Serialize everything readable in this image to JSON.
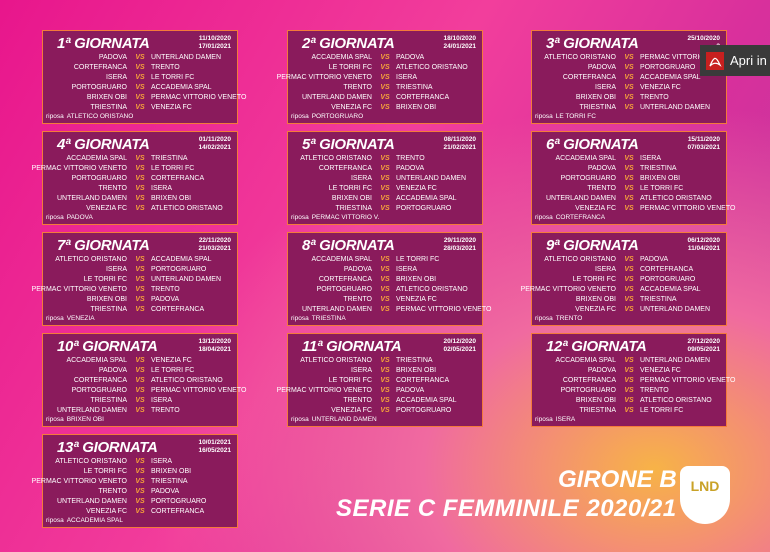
{
  "vs_label": "VS",
  "rest_label": "riposa",
  "button": "Apri in",
  "footer": {
    "line1": "GIRONE B",
    "line2": "SERIE C FEMMINILE 2020/21",
    "logo": "LND"
  },
  "rounds": [
    {
      "title": "1ª GIORNATA",
      "date1": "11/10/2020",
      "date2": "17/01/2021",
      "matches": [
        [
          "PADOVA",
          "UNTERLAND DAMEN"
        ],
        [
          "CORTEFRANCA",
          "TRENTO"
        ],
        [
          "ISERA",
          "LE TORRI FC"
        ],
        [
          "PORTOGRUARO",
          "ACCADEMIA SPAL"
        ],
        [
          "BRIXEN OBI",
          "PERMAC VITTORIO VENETO"
        ],
        [
          "TRIESTINA",
          "VENEZIA FC"
        ]
      ],
      "rest": "ATLETICO ORISTANO"
    },
    {
      "title": "2ª GIORNATA",
      "date1": "18/10/2020",
      "date2": "24/01/2021",
      "matches": [
        [
          "ACCADEMIA SPAL",
          "PADOVA"
        ],
        [
          "LE TORRI FC",
          "ATLETICO ORISTANO"
        ],
        [
          "PERMAC VITTORIO VENETO",
          "ISERA"
        ],
        [
          "TRENTO",
          "TRIESTINA"
        ],
        [
          "UNTERLAND DAMEN",
          "CORTEFRANCA"
        ],
        [
          "VENEZIA FC",
          "BRIXEN OBI"
        ]
      ],
      "rest": "PORTOGRUARO"
    },
    {
      "title": "3ª GIORNATA",
      "date1": "25/10/2020",
      "date2": "3",
      "matches": [
        [
          "ATLETICO ORISTANO",
          "PERMAC VITTORIO"
        ],
        [
          "PADOVA",
          "PORTOGRUARO"
        ],
        [
          "CORTEFRANCA",
          "ACCADEMIA SPAL"
        ],
        [
          "ISERA",
          "VENEZIA FC"
        ],
        [
          "BRIXEN OBI",
          "TRENTO"
        ],
        [
          "TRIESTINA",
          "UNTERLAND DAMEN"
        ]
      ],
      "rest": "LE TORRI FC"
    },
    {
      "title": "4ª GIORNATA",
      "date1": "01/11/2020",
      "date2": "14/02/2021",
      "matches": [
        [
          "ACCADEMIA SPAL",
          "TRIESTINA"
        ],
        [
          "PERMAC VITTORIO VENETO",
          "LE TORRI FC"
        ],
        [
          "PORTOGRUARO",
          "CORTEFRANCA"
        ],
        [
          "TRENTO",
          "ISERA"
        ],
        [
          "UNTERLAND DAMEN",
          "BRIXEN OBI"
        ],
        [
          "VENEZIA FC",
          "ATLETICO ORISTANO"
        ]
      ],
      "rest": "PADOVA"
    },
    {
      "title": "5ª GIORNATA",
      "date1": "08/11/2020",
      "date2": "21/02/2021",
      "matches": [
        [
          "ATLETICO ORISTANO",
          "TRENTO"
        ],
        [
          "CORTEFRANCA",
          "PADOVA"
        ],
        [
          "ISERA",
          "UNTERLAND DAMEN"
        ],
        [
          "LE TORRI FC",
          "VENEZIA FC"
        ],
        [
          "BRIXEN OBI",
          "ACCADEMIA SPAL"
        ],
        [
          "TRIESTINA",
          "PORTOGRUARO"
        ]
      ],
      "rest": "PERMAC VITTORIO V."
    },
    {
      "title": "6ª GIORNATA",
      "date1": "15/11/2020",
      "date2": "07/03/2021",
      "matches": [
        [
          "ACCADEMIA SPAL",
          "ISERA"
        ],
        [
          "PADOVA",
          "TRIESTINA"
        ],
        [
          "PORTOGRUARO",
          "BRIXEN OBI"
        ],
        [
          "TRENTO",
          "LE TORRI FC"
        ],
        [
          "UNTERLAND DAMEN",
          "ATLETICO ORISTANO"
        ],
        [
          "VENEZIA FC",
          "PERMAC VITTORIO VENETO"
        ]
      ],
      "rest": "CORTEFRANCA"
    },
    {
      "title": "7ª GIORNATA",
      "date1": "22/11/2020",
      "date2": "21/03/2021",
      "matches": [
        [
          "ATLETICO ORISTANO",
          "ACCADEMIA SPAL"
        ],
        [
          "ISERA",
          "PORTOGRUARO"
        ],
        [
          "LE TORRI FC",
          "UNTERLAND DAMEN"
        ],
        [
          "PERMAC VITTORIO VENETO",
          "TRENTO"
        ],
        [
          "BRIXEN OBI",
          "PADOVA"
        ],
        [
          "TRIESTINA",
          "CORTEFRANCA"
        ]
      ],
      "rest": "VENEZIA"
    },
    {
      "title": "8ª GIORNATA",
      "date1": "29/11/2020",
      "date2": "28/03/2021",
      "matches": [
        [
          "ACCADEMIA SPAL",
          "LE TORRI FC"
        ],
        [
          "PADOVA",
          "ISERA"
        ],
        [
          "CORTEFRANCA",
          "BRIXEN OBI"
        ],
        [
          "PORTOGRUARO",
          "ATLETICO ORISTANO"
        ],
        [
          "TRENTO",
          "VENEZIA FC"
        ],
        [
          "UNTERLAND DAMEN",
          "PERMAC VITTORIO VENETO"
        ]
      ],
      "rest": "TRIESTINA"
    },
    {
      "title": "9ª GIORNATA",
      "date1": "06/12/2020",
      "date2": "11/04/2021",
      "matches": [
        [
          "ATLETICO ORISTANO",
          "PADOVA"
        ],
        [
          "ISERA",
          "CORTEFRANCA"
        ],
        [
          "LE TORRI FC",
          "PORTOGRUARO"
        ],
        [
          "PERMAC VITTORIO VENETO",
          "ACCADEMIA SPAL"
        ],
        [
          "BRIXEN OBI",
          "TRIESTINA"
        ],
        [
          "VENEZIA FC",
          "UNTERLAND DAMEN"
        ]
      ],
      "rest": "TRENTO"
    },
    {
      "title": "10ª GIORNATA",
      "date1": "13/12/2020",
      "date2": "18/04/2021",
      "matches": [
        [
          "ACCADEMIA SPAL",
          "VENEZIA FC"
        ],
        [
          "PADOVA",
          "LE TORRI FC"
        ],
        [
          "CORTEFRANCA",
          "ATLETICO ORISTANO"
        ],
        [
          "PORTOGRUARO",
          "PERMAC VITTORIO VENETO"
        ],
        [
          "TRIESTINA",
          "ISERA"
        ],
        [
          "UNTERLAND DAMEN",
          "TRENTO"
        ]
      ],
      "rest": "BRIXEN OBI"
    },
    {
      "title": "11ª GIORNATA",
      "date1": "20/12/2020",
      "date2": "02/05/2021",
      "matches": [
        [
          "ATLETICO ORISTANO",
          "TRIESTINA"
        ],
        [
          "ISERA",
          "BRIXEN OBI"
        ],
        [
          "LE TORRI FC",
          "CORTEFRANCA"
        ],
        [
          "PERMAC VITTORIO VENETO",
          "PADOVA"
        ],
        [
          "TRENTO",
          "ACCADEMIA SPAL"
        ],
        [
          "VENEZIA FC",
          "PORTOGRUARO"
        ]
      ],
      "rest": "UNTERLAND DAMEN"
    },
    {
      "title": "12ª GIORNATA",
      "date1": "27/12/2020",
      "date2": "09/05/2021",
      "matches": [
        [
          "ACCADEMIA SPAL",
          "UNTERLAND DAMEN"
        ],
        [
          "PADOVA",
          "VENEZIA FC"
        ],
        [
          "CORTEFRANCA",
          "PERMAC VITTORIO VENETO"
        ],
        [
          "PORTOGRUARO",
          "TRENTO"
        ],
        [
          "BRIXEN OBI",
          "ATLETICO ORISTANO"
        ],
        [
          "TRIESTINA",
          "LE TORRI FC"
        ]
      ],
      "rest": "ISERA"
    },
    {
      "title": "13ª GIORNATA",
      "date1": "10/01/2021",
      "date2": "16/05/2021",
      "matches": [
        [
          "ATLETICO ORISTANO",
          "ISERA"
        ],
        [
          "LE TORRI FC",
          "BRIXEN OBI"
        ],
        [
          "PERMAC VITTORIO VENETO",
          "TRIESTINA"
        ],
        [
          "TRENTO",
          "PADOVA"
        ],
        [
          "UNTERLAND DAMEN",
          "PORTOGRUARO"
        ],
        [
          "VENEZIA FC",
          "CORTEFRANCA"
        ]
      ],
      "rest": "ACCADEMIA SPAL"
    }
  ]
}
